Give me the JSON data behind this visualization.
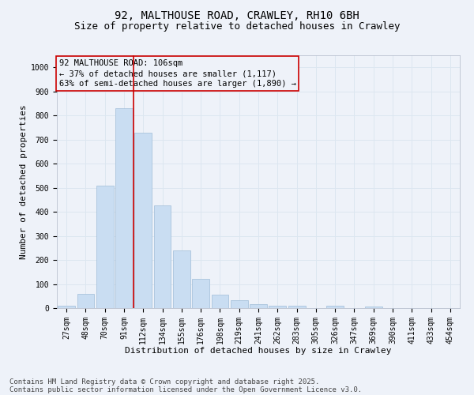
{
  "title_line1": "92, MALTHOUSE ROAD, CRAWLEY, RH10 6BH",
  "title_line2": "Size of property relative to detached houses in Crawley",
  "xlabel": "Distribution of detached houses by size in Crawley",
  "ylabel": "Number of detached properties",
  "categories": [
    "27sqm",
    "48sqm",
    "70sqm",
    "91sqm",
    "112sqm",
    "134sqm",
    "155sqm",
    "176sqm",
    "198sqm",
    "219sqm",
    "241sqm",
    "262sqm",
    "283sqm",
    "305sqm",
    "326sqm",
    "347sqm",
    "369sqm",
    "390sqm",
    "411sqm",
    "433sqm",
    "454sqm"
  ],
  "values": [
    10,
    60,
    510,
    830,
    730,
    425,
    240,
    120,
    55,
    33,
    15,
    10,
    10,
    0,
    10,
    0,
    5,
    0,
    0,
    0,
    0
  ],
  "bar_color": "#c9ddf2",
  "bar_edge_color": "#a0bcd8",
  "grid_color": "#dce6f0",
  "background_color": "#eef2f9",
  "vline_color": "#cc0000",
  "vline_index": 3.5,
  "annotation_box_text": "92 MALTHOUSE ROAD: 106sqm\n← 37% of detached houses are smaller (1,117)\n63% of semi-detached houses are larger (1,890) →",
  "annotation_box_color": "#cc0000",
  "ylim": [
    0,
    1050
  ],
  "yticks": [
    0,
    100,
    200,
    300,
    400,
    500,
    600,
    700,
    800,
    900,
    1000
  ],
  "footer_line1": "Contains HM Land Registry data © Crown copyright and database right 2025.",
  "footer_line2": "Contains public sector information licensed under the Open Government Licence v3.0.",
  "title_fontsize": 10,
  "subtitle_fontsize": 9,
  "axis_label_fontsize": 8,
  "tick_fontsize": 7,
  "annotation_fontsize": 7.5,
  "footer_fontsize": 6.5
}
